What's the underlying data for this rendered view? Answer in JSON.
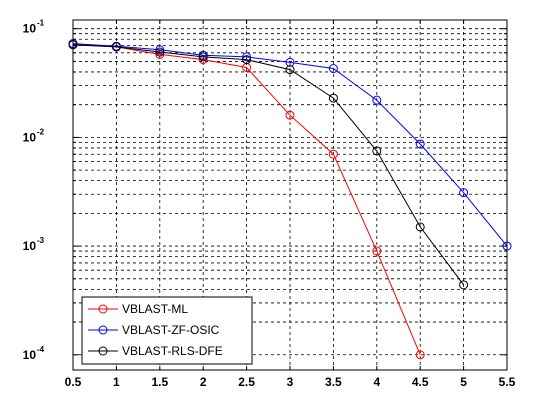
{
  "chart_data": {
    "type": "line",
    "x": [
      0.5,
      1,
      1.5,
      2,
      2.5,
      3,
      3.5,
      4,
      4.5,
      5,
      5.5
    ],
    "x_ticks": [
      "0.5",
      "1",
      "1.5",
      "2",
      "2.5",
      "3",
      "3.5",
      "4",
      "4.5",
      "5",
      "5.5"
    ],
    "y_scale": "log",
    "y_ticks": [
      {
        "base": "10",
        "exp": "-1"
      },
      {
        "base": "10",
        "exp": "-2"
      },
      {
        "base": "10",
        "exp": "-3"
      },
      {
        "base": "10",
        "exp": "-4"
      }
    ],
    "xlim": [
      0.5,
      5.5
    ],
    "ylim": [
      7e-05,
      0.1
    ],
    "grid": true,
    "legend_position": "bottom-left",
    "series": [
      {
        "name": "VBLAST-ML",
        "color": "#ff0000",
        "marker": "circle",
        "points": [
          [
            0.5,
            0.072
          ],
          [
            1,
            0.068
          ],
          [
            1.5,
            0.058
          ],
          [
            2,
            0.052
          ],
          [
            2.5,
            0.044
          ],
          [
            3,
            0.016
          ],
          [
            3.5,
            0.007
          ],
          [
            4,
            0.0009
          ],
          [
            4.5,
            0.0001
          ]
        ]
      },
      {
        "name": "VBLAST-ZF-OSIC",
        "color": "#0000ff",
        "marker": "circle",
        "points": [
          [
            0.5,
            0.073
          ],
          [
            1,
            0.069
          ],
          [
            1.5,
            0.064
          ],
          [
            2,
            0.057
          ],
          [
            2.5,
            0.055
          ],
          [
            3,
            0.049
          ],
          [
            3.5,
            0.043
          ],
          [
            4,
            0.022
          ],
          [
            4.5,
            0.0087
          ],
          [
            5,
            0.0031
          ],
          [
            5.5,
            0.001
          ]
        ]
      },
      {
        "name": "VBLAST-RLS-DFE",
        "color": "#000000",
        "marker": "circle",
        "points": [
          [
            0.5,
            0.071
          ],
          [
            1,
            0.068
          ],
          [
            1.5,
            0.061
          ],
          [
            2,
            0.055
          ],
          [
            2.5,
            0.052
          ],
          [
            3,
            0.042
          ],
          [
            3.5,
            0.023
          ],
          [
            4,
            0.0075
          ],
          [
            4.5,
            0.0015
          ],
          [
            5,
            0.00044
          ]
        ]
      }
    ]
  }
}
